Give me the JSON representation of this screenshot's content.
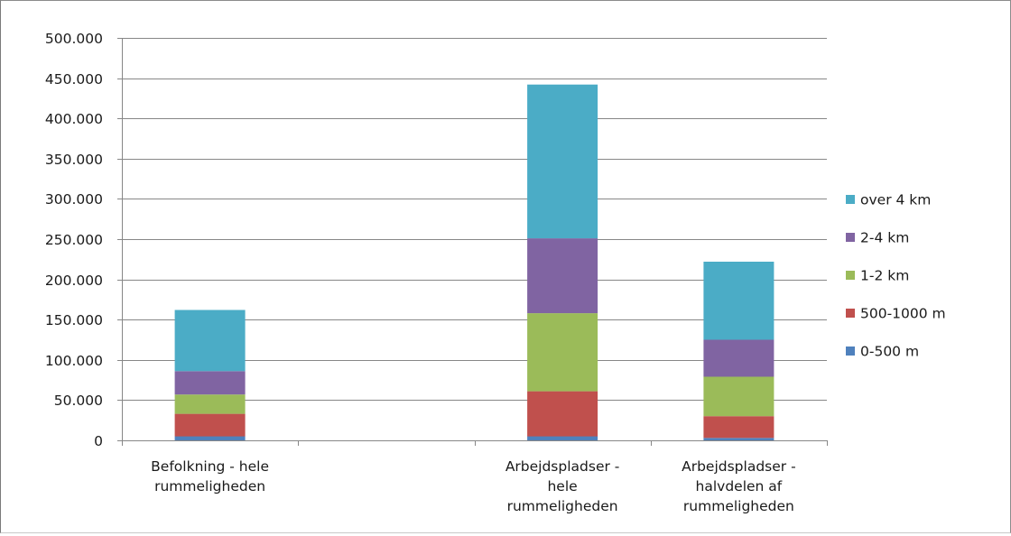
{
  "chart_data": {
    "type": "bar",
    "stacked": true,
    "title": "",
    "xlabel": "",
    "ylabel": "",
    "ylim": [
      0,
      500000
    ],
    "ytick_step": 50000,
    "yticks": [
      "0",
      "50.000",
      "100.000",
      "150.000",
      "200.000",
      "250.000",
      "300.000",
      "350.000",
      "400.000",
      "450.000",
      "500.000"
    ],
    "grid": true,
    "legend_position": "right",
    "category_slots": 4,
    "categories": [
      {
        "slot": 0,
        "lines": [
          "Befolkning - hele",
          "rummeligheden"
        ]
      },
      {
        "slot": 2,
        "lines": [
          "Arbejdspladser -",
          "hele",
          "rummeligheden"
        ]
      },
      {
        "slot": 3,
        "lines": [
          "Arbejdspladser -",
          "halvdelen af",
          "rummeligheden"
        ]
      }
    ],
    "series": [
      {
        "name": "0-500 m",
        "color": "#4f81bd",
        "values": [
          5000,
          5000,
          3000
        ]
      },
      {
        "name": "500-1000 m",
        "color": "#c0504d",
        "values": [
          28000,
          56000,
          27000
        ]
      },
      {
        "name": "1-2 km",
        "color": "#9bbb59",
        "values": [
          24000,
          97000,
          49000
        ]
      },
      {
        "name": "2-4 km",
        "color": "#8064a2",
        "values": [
          29000,
          93000,
          46000
        ]
      },
      {
        "name": "over 4 km",
        "color": "#4bacc6",
        "values": [
          76000,
          191000,
          97000
        ]
      }
    ]
  }
}
